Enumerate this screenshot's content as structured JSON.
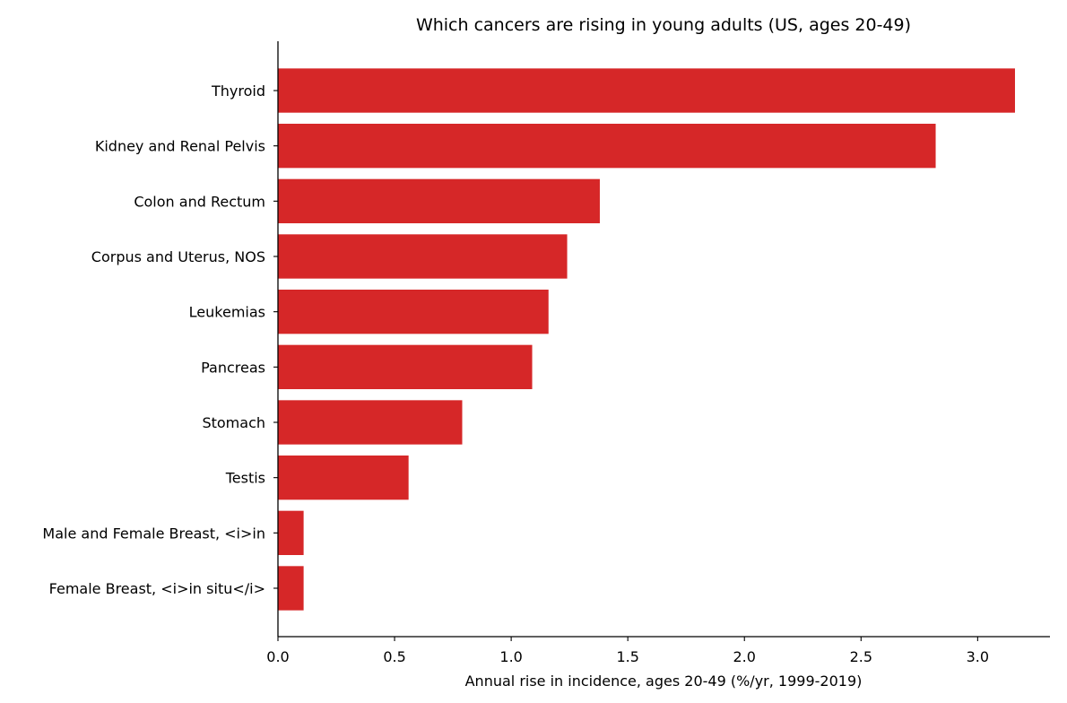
{
  "chart_data": {
    "type": "bar",
    "orientation": "horizontal",
    "title": "Which cancers are rising in young adults (US, ages 20-49)",
    "xlabel": "Annual rise in incidence, ages 20-49 (%/yr, 1999-2019)",
    "ylabel": "",
    "categories": [
      "Thyroid",
      "Kidney and Renal Pelvis",
      "Colon and Rectum",
      "Corpus and Uterus, NOS",
      "Leukemias",
      "Pancreas",
      "Stomach",
      "Testis",
      "Male and Female Breast, <i>in ",
      "Female Breast, <i>in situ</i>"
    ],
    "values": [
      3.16,
      2.82,
      1.38,
      1.24,
      1.16,
      1.09,
      0.79,
      0.56,
      0.11,
      0.11
    ],
    "xlim": [
      0,
      3.31
    ],
    "xticks": [
      0.0,
      0.5,
      1.0,
      1.5,
      2.0,
      2.5,
      3.0
    ],
    "xtick_labels": [
      "0.0",
      "0.5",
      "1.0",
      "1.5",
      "2.0",
      "2.5",
      "3.0"
    ],
    "bar_color": "#d62728",
    "grid": false,
    "legend": "none"
  }
}
